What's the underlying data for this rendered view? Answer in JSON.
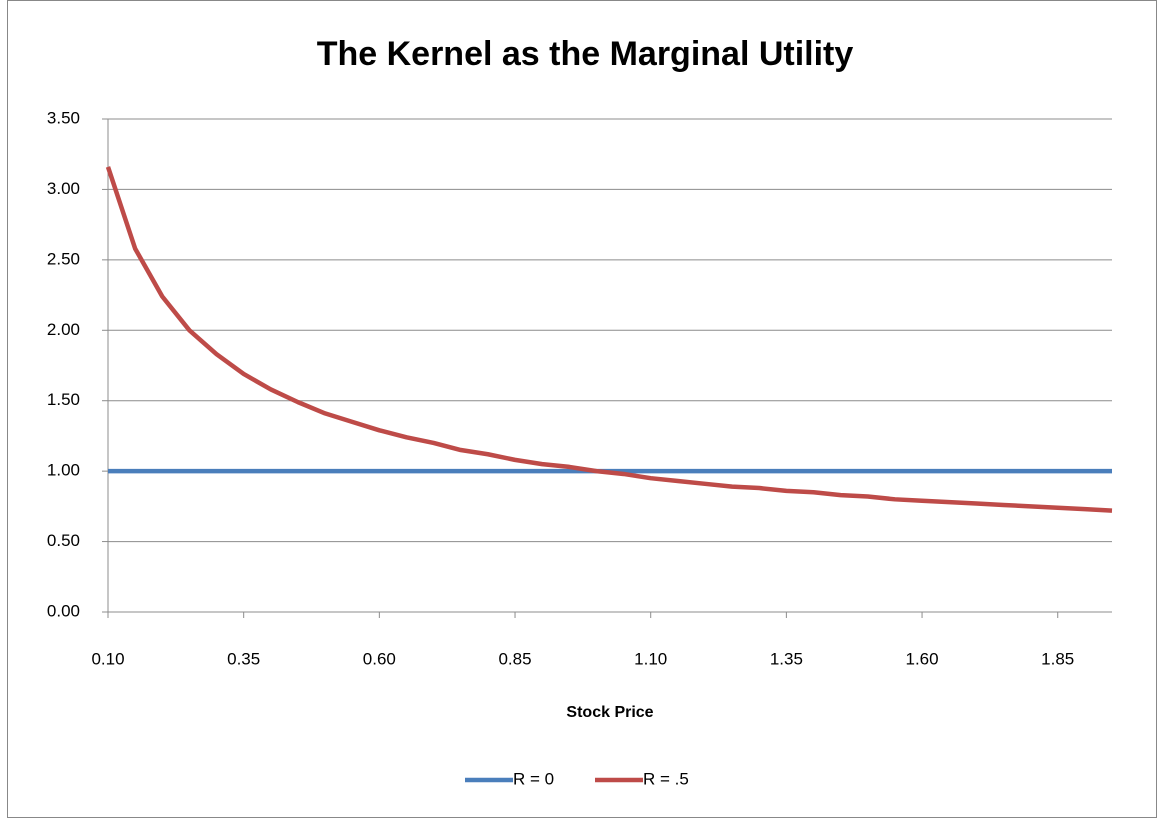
{
  "chart_data": {
    "type": "line",
    "title": "The Kernel as the Marginal Utility",
    "x_label": "Stock Price",
    "x": [
      0.1,
      0.15,
      0.2,
      0.25,
      0.3,
      0.35,
      0.4,
      0.45,
      0.5,
      0.55,
      0.6,
      0.65,
      0.7,
      0.75,
      0.8,
      0.85,
      0.9,
      0.95,
      1.0,
      1.05,
      1.1,
      1.15,
      1.2,
      1.25,
      1.3,
      1.35,
      1.4,
      1.45,
      1.5,
      1.55,
      1.6,
      1.65,
      1.7,
      1.75,
      1.8,
      1.85,
      1.9,
      1.95
    ],
    "series": [
      {
        "name": "R = 0",
        "color": "#4a7ebb",
        "values": [
          1,
          1,
          1,
          1,
          1,
          1,
          1,
          1,
          1,
          1,
          1,
          1,
          1,
          1,
          1,
          1,
          1,
          1,
          1,
          1,
          1,
          1,
          1,
          1,
          1,
          1,
          1,
          1,
          1,
          1,
          1,
          1,
          1,
          1,
          1,
          1,
          1,
          1
        ]
      },
      {
        "name": "R = .5",
        "color": "#be4b48",
        "values": [
          3.16,
          2.58,
          2.24,
          2.0,
          1.83,
          1.69,
          1.58,
          1.49,
          1.41,
          1.35,
          1.29,
          1.24,
          1.2,
          1.15,
          1.12,
          1.08,
          1.05,
          1.03,
          1.0,
          0.98,
          0.95,
          0.93,
          0.91,
          0.89,
          0.88,
          0.86,
          0.85,
          0.83,
          0.82,
          0.8,
          0.79,
          0.78,
          0.77,
          0.76,
          0.75,
          0.74,
          0.73,
          0.72
        ]
      }
    ],
    "xlim": [
      0.1,
      1.95
    ],
    "xticks": [
      {
        "value": 0.1,
        "label": "0.10"
      },
      {
        "value": 0.35,
        "label": "0.35"
      },
      {
        "value": 0.6,
        "label": "0.60"
      },
      {
        "value": 0.85,
        "label": "0.85"
      },
      {
        "value": 1.1,
        "label": "1.10"
      },
      {
        "value": 1.35,
        "label": "1.35"
      },
      {
        "value": 1.6,
        "label": "1.60"
      },
      {
        "value": 1.85,
        "label": "1.85"
      }
    ],
    "ylim": [
      0,
      3.5
    ],
    "yticks": [
      {
        "value": 0,
        "label": "0.00"
      },
      {
        "value": 0.5,
        "label": "0.50"
      },
      {
        "value": 1,
        "label": "1.00"
      },
      {
        "value": 1.5,
        "label": "1.50"
      },
      {
        "value": 2,
        "label": "2.00"
      },
      {
        "value": 2.5,
        "label": "2.50"
      },
      {
        "value": 3,
        "label": "3.00"
      },
      {
        "value": 3.5,
        "label": "3.50"
      }
    ],
    "grid": true,
    "legend": "bottom"
  }
}
